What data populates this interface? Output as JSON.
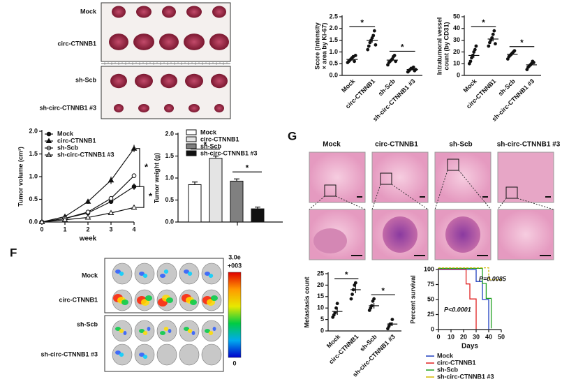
{
  "tumor_photos": {
    "labels": [
      "Mock",
      "circ-CTNNB1",
      "sh-Scb",
      "sh-circ-CTNNB1 #3"
    ]
  },
  "imaging": {
    "panel": "F",
    "labels": [
      "Mock",
      "circ-CTNNB1",
      "sh-Scb",
      "sh-circ-CTNNB1 #3"
    ],
    "colorbar": [
      "3.0e",
      "+003",
      "0"
    ]
  },
  "histology": {
    "panel": "G",
    "columns": [
      "Mock",
      "circ-CTNNB1",
      "sh-Scb",
      "sh-circ-CTNNB1 #3"
    ]
  },
  "chart_data": [
    {
      "type": "dot",
      "ylabel": [
        "Score (intensity",
        "× area by Ki-67)"
      ],
      "categories": [
        "Mock",
        "circ-CTNNB1",
        "sh-Scb",
        "sh-circ-CTNNB1 #3"
      ],
      "points": [
        [
          0.55,
          0.6,
          0.65,
          0.7,
          0.75,
          0.8,
          0.6,
          0.85
        ],
        [
          1.1,
          1.25,
          1.4,
          1.5,
          1.6,
          1.7,
          1.9,
          1.3
        ],
        [
          0.45,
          0.55,
          0.6,
          0.65,
          0.7,
          0.8,
          0.85,
          0.6
        ],
        [
          0.15,
          0.2,
          0.25,
          0.3,
          0.3,
          0.35,
          0.2,
          0.25
        ]
      ],
      "means": [
        0.68,
        1.5,
        0.65,
        0.25
      ],
      "errors": [
        0.05,
        0.1,
        0.05,
        0.03
      ],
      "ylim": [
        0,
        2.5
      ],
      "yticks": [
        {
          "value": 0,
          "label": "0.0"
        },
        {
          "value": 0.5,
          "label": "0.5"
        },
        {
          "value": 1,
          "label": "1.0"
        },
        {
          "value": 1.5,
          "label": "1.5"
        },
        {
          "value": 2,
          "label": "2.0"
        },
        {
          "value": 2.5,
          "label": "2.5"
        }
      ],
      "significance": [
        "*",
        "*"
      ]
    },
    {
      "type": "dot",
      "ylabel": [
        "Intratumoral vessel",
        "count (by CD31)"
      ],
      "categories": [
        "Mock",
        "circ-CTNNB1",
        "sh-Scb",
        "sh-circ-CTNNB1 #3"
      ],
      "points": [
        [
          10,
          12,
          15,
          17,
          20,
          22,
          25
        ],
        [
          25,
          28,
          30,
          32,
          35,
          38,
          27
        ],
        [
          14,
          16,
          17,
          18,
          19,
          20,
          21
        ],
        [
          5,
          7,
          8,
          9,
          10,
          12,
          11
        ]
      ],
      "means": [
        17,
        31,
        18,
        9
      ],
      "errors": [
        2,
        2,
        1,
        1
      ],
      "ylim": [
        0,
        50
      ],
      "yticks": [
        0,
        10,
        20,
        30,
        40,
        50
      ],
      "significance": [
        "*",
        "*"
      ]
    },
    {
      "type": "line",
      "ylabel": "Tumor volume (cm³)",
      "xlabel": "week",
      "x": [
        0,
        1,
        2,
        3,
        4
      ],
      "xlim": [
        0,
        4
      ],
      "xticks": [
        0,
        1,
        2,
        3,
        4
      ],
      "ylim": [
        0,
        2
      ],
      "yticks": [
        {
          "value": 0,
          "label": "0.0"
        },
        {
          "value": 0.5,
          "label": "0.5"
        },
        {
          "value": 1,
          "label": "1.0"
        },
        {
          "value": 1.5,
          "label": "1.5"
        },
        {
          "value": 2,
          "label": "2.0"
        }
      ],
      "series": [
        {
          "name": "Mock",
          "marker": "circle",
          "values": [
            0,
            0.08,
            0.2,
            0.45,
            0.78
          ],
          "errors": [
            0,
            0.02,
            0.03,
            0.05,
            0.07
          ]
        },
        {
          "name": "circ-CTNNB1",
          "marker": "triangle",
          "values": [
            0,
            0.12,
            0.45,
            0.92,
            1.62
          ],
          "errors": [
            0,
            0.02,
            0.05,
            0.08,
            0.08
          ]
        },
        {
          "name": "sh-Scb",
          "marker": "open-circle",
          "values": [
            0,
            0.08,
            0.22,
            0.52,
            1.02
          ],
          "errors": [
            0,
            0.02,
            0.03,
            0.05,
            0.05
          ]
        },
        {
          "name": "sh-circ-CTNNB1 #3",
          "marker": "open-triangle",
          "values": [
            0,
            0.05,
            0.1,
            0.2,
            0.32
          ],
          "errors": [
            0,
            0.01,
            0.02,
            0.03,
            0.05
          ]
        }
      ],
      "significance": [
        "*",
        "*"
      ]
    },
    {
      "type": "bar",
      "ylabel": "Tumor weight (g)",
      "categories": [
        "Mock",
        "circ-CTNNB1",
        "sh-Scb",
        "sh-circ-CTNNB1 #3"
      ],
      "values": [
        0.85,
        1.45,
        0.93,
        0.3
      ],
      "errors": [
        0.06,
        0.05,
        0.05,
        0.04
      ],
      "colors": [
        "#ffffff",
        "#e4e4e4",
        "#808080",
        "#111111"
      ],
      "ylim": [
        0,
        2
      ],
      "yticks": [
        {
          "value": 0,
          "label": "0.0"
        },
        {
          "value": 0.5,
          "label": "0.5"
        },
        {
          "value": 1,
          "label": "1.0"
        },
        {
          "value": 1.5,
          "label": "1.5"
        },
        {
          "value": 2,
          "label": "2.0"
        }
      ],
      "significance": [
        "*",
        "*"
      ]
    },
    {
      "type": "dot",
      "ylabel": [
        "Metastasis count"
      ],
      "categories": [
        "Mock",
        "circ-CTNNB1",
        "sh-Scb",
        "sh-circ-CTNNB1 #3"
      ],
      "points": [
        [
          6,
          7,
          8,
          10,
          12
        ],
        [
          14,
          16,
          18,
          20,
          21
        ],
        [
          9,
          10,
          11,
          13,
          14
        ],
        [
          1,
          2,
          3,
          3,
          5
        ]
      ],
      "means": [
        8.5,
        18,
        11,
        3
      ],
      "errors": [
        1.5,
        1.5,
        1.2,
        0.8
      ],
      "ylim": [
        0,
        25
      ],
      "yticks": [
        0,
        5,
        10,
        15,
        20,
        25
      ],
      "significance": [
        "*",
        "*"
      ]
    },
    {
      "type": "step",
      "ylabel": "Percent survival",
      "xlabel": "Days",
      "xlim": [
        0,
        50
      ],
      "xticks": [
        0,
        10,
        20,
        30,
        40,
        50
      ],
      "ylim": [
        0,
        100
      ],
      "yticks": [
        0,
        25,
        50,
        75,
        100
      ],
      "series": [
        {
          "name": "Mock",
          "color": "#1f3fbf",
          "x": [
            0,
            30,
            30,
            35,
            35,
            40,
            40
          ],
          "values": [
            100,
            100,
            80,
            80,
            50,
            50,
            0
          ]
        },
        {
          "name": "circ-CTNNB1",
          "color": "#e02020",
          "x": [
            0,
            22,
            22,
            25,
            25,
            30,
            30
          ],
          "values": [
            100,
            100,
            75,
            75,
            50,
            50,
            0
          ]
        },
        {
          "name": "sh-Scb",
          "color": "#20a020",
          "x": [
            0,
            35,
            35,
            38,
            38,
            42,
            42
          ],
          "values": [
            100,
            100,
            75,
            75,
            50,
            50,
            0
          ]
        },
        {
          "name": "sh-circ-CTNNB1 #3",
          "color": "#d4b800",
          "x": [
            0,
            40,
            40,
            50
          ],
          "values": [
            100,
            100,
            80,
            80
          ]
        }
      ],
      "annotations": [
        "P=0.0085",
        "P<0.0001"
      ]
    }
  ]
}
